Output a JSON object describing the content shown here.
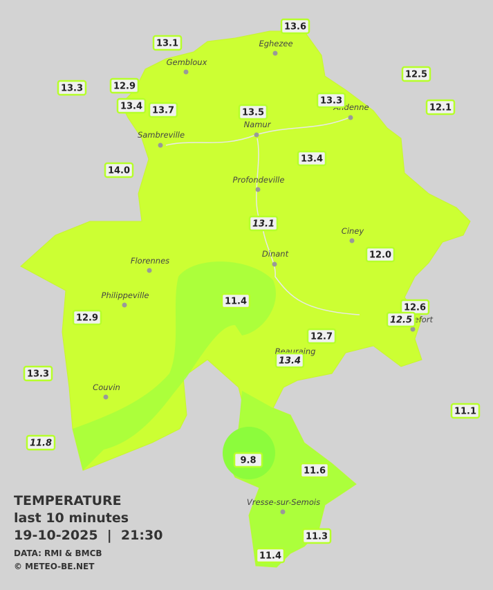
{
  "title": "TEMPERATURE",
  "subtitle": "last 10 minutes",
  "datetime": "19-10-2025  |  21:30",
  "source": "DATA: RMI & BMCB",
  "copyright": "© METEO-BE.NET",
  "cities": [
    "Eghezee",
    "Gembloux",
    "Andenne",
    "Namur",
    "Sambreville",
    "Profondeville",
    "Ciney",
    "Dinant",
    "Florennes",
    "Philippeville",
    "Rochefort",
    "Beauraing",
    "Couvin",
    "Vresse-sur-Semois"
  ],
  "readings": [
    "13.1",
    "13.6",
    "13.3",
    "12.9",
    "13.4",
    "13.7",
    "13.5",
    "13.3",
    "12.5",
    "12.1",
    "14.0",
    "13.4",
    "13.1",
    "12.0",
    "11.4",
    "12.6",
    "12.5",
    "12.9",
    "12.7",
    "13.4",
    "13.3",
    "11.1",
    "11.8",
    "9.8",
    "11.6",
    "11.3",
    "11.4"
  ]
}
